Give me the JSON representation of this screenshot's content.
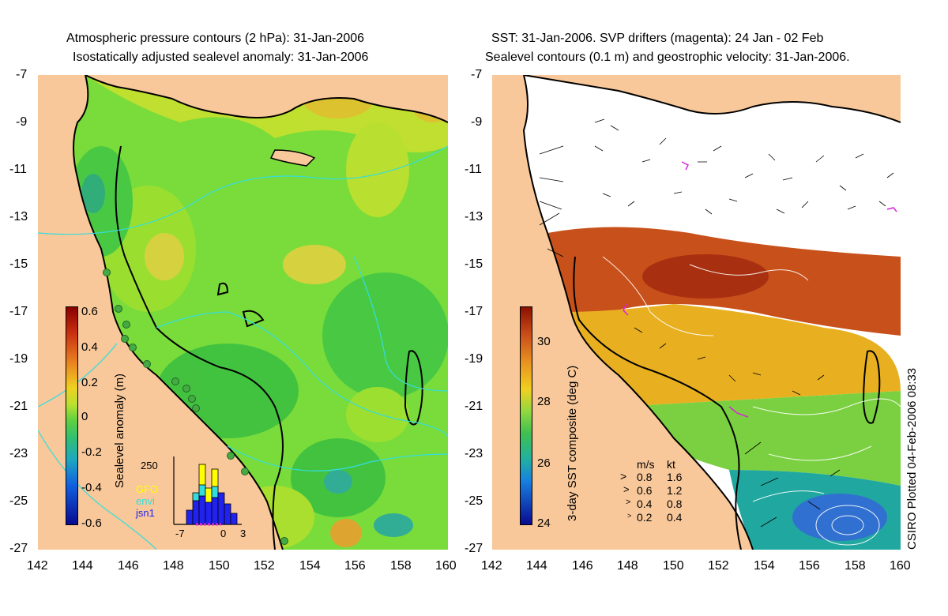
{
  "left_panel": {
    "title_line1": "Atmospheric pressure contours (2 hPa): 31-Jan-2006",
    "title_line2": "Isostatically adjusted sealevel anomaly: 31-Jan-2006",
    "y_ticks": [
      "-7",
      "-9",
      "-11",
      "-13",
      "-15",
      "-17",
      "-19",
      "-21",
      "-23",
      "-25",
      "-27"
    ],
    "x_ticks": [
      "142",
      "144",
      "146",
      "148",
      "150",
      "152",
      "154",
      "156",
      "158",
      "160"
    ],
    "colorbar": {
      "label": "Sealevel anomaly (m)",
      "ticks": [
        "0.6",
        "0.4",
        "0.2",
        "0",
        "-0.2",
        "-0.4",
        "-0.6"
      ]
    },
    "histogram": {
      "ymax_label": "250",
      "legend": [
        {
          "name": "GFO",
          "color": "#ffff00"
        },
        {
          "name": "envi",
          "color": "#33dddd"
        },
        {
          "name": "jsn1",
          "color": "#2222ee"
        }
      ],
      "x_labels": [
        "-7",
        "0",
        "3"
      ]
    }
  },
  "right_panel": {
    "title_line1": "SST: 31-Jan-2006. SVP drifters (magenta): 24 Jan - 02 Feb",
    "title_line2": "Sealevel contours (0.1 m) and geostrophic velocity: 31-Jan-2006.",
    "y_ticks": [
      "-7",
      "-9",
      "-11",
      "-13",
      "-15",
      "-17",
      "-19",
      "-21",
      "-23",
      "-25",
      "-27"
    ],
    "x_ticks": [
      "142",
      "144",
      "146",
      "148",
      "150",
      "152",
      "154",
      "156",
      "158",
      "160"
    ],
    "colorbar": {
      "label": "3-day SST composite (deg C)",
      "ticks": [
        "30",
        "28",
        "26",
        "24"
      ]
    },
    "velocity_legend": {
      "header_ms": "m/s",
      "header_kt": "kt",
      "rows": [
        {
          "ms": "0.8",
          "kt": "1.6"
        },
        {
          "ms": "0.6",
          "kt": "1.2"
        },
        {
          "ms": "0.4",
          "kt": "0.8"
        },
        {
          "ms": "0.2",
          "kt": "0.4"
        }
      ]
    },
    "credit": "CSIRO Plotted 04-Feb-2006 08:33"
  },
  "colors": {
    "land": "#f8c89a",
    "ocean_green": "#55d055",
    "sst_warm": "#c84a1a",
    "contour_cyan": "#33dddd",
    "drifter_magenta": "#dd22dd"
  }
}
